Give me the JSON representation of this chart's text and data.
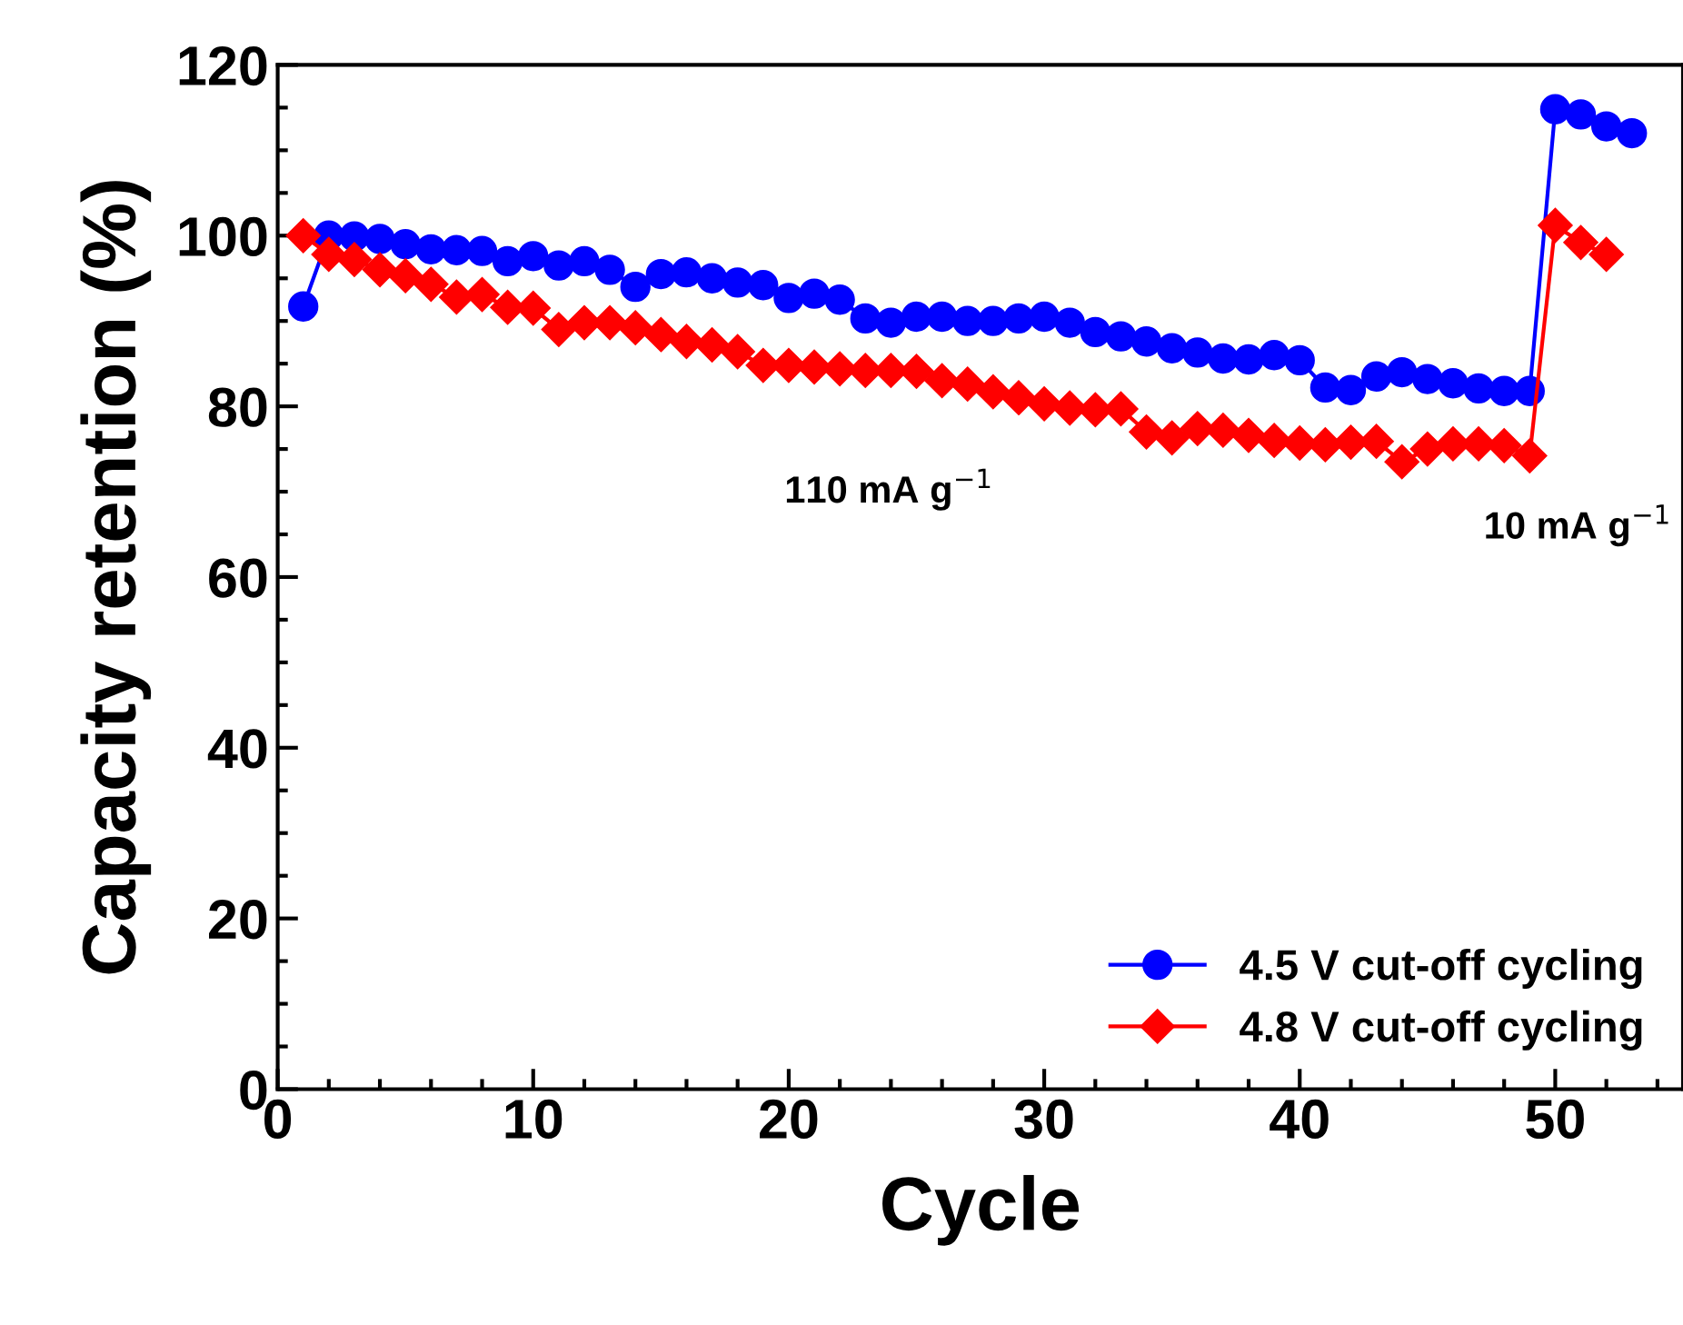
{
  "chart_data": {
    "type": "line",
    "xlabel": "Cycle",
    "ylabel": "Capacity retention (%)",
    "x": [
      1,
      2,
      3,
      4,
      5,
      6,
      7,
      8,
      9,
      10,
      11,
      12,
      13,
      14,
      15,
      16,
      17,
      18,
      19,
      20,
      21,
      22,
      23,
      24,
      25,
      26,
      27,
      28,
      29,
      30,
      31,
      32,
      33,
      34,
      35,
      36,
      37,
      38,
      39,
      40,
      41,
      42,
      43,
      44,
      45,
      46,
      47,
      48,
      49,
      50,
      51,
      52,
      53
    ],
    "series": [
      {
        "name": "4.5 V cut-off cycling",
        "color": "#0000ff",
        "marker": "circle",
        "values": [
          91.7,
          100,
          99.9,
          99.6,
          99.0,
          98.4,
          98.3,
          98.2,
          97,
          97.6,
          96.5,
          97,
          96,
          94,
          95.5,
          95.7,
          95,
          94.5,
          94.2,
          92.7,
          93.2,
          92.5,
          90.3,
          89.8,
          90.5,
          90.5,
          90,
          90,
          90.3,
          90.5,
          89.8,
          88.7,
          88.2,
          87.6,
          86.8,
          86.3,
          85.6,
          85.5,
          86,
          85.4,
          82.2,
          81.9,
          83.5,
          84,
          83.2,
          82.7,
          82.1,
          81.8,
          81.8,
          114.8,
          114.2,
          112.8,
          112
        ]
      },
      {
        "name": "4.8 V cut-off cycling",
        "color": "#ff0000",
        "marker": "diamond",
        "x": [
          1,
          2,
          3,
          4,
          5,
          6,
          7,
          8,
          9,
          10,
          11,
          12,
          13,
          14,
          15,
          16,
          17,
          18,
          19,
          20,
          21,
          22,
          23,
          24,
          25,
          26,
          27,
          28,
          29,
          30,
          31,
          32,
          33,
          34,
          35,
          36,
          37,
          38,
          39,
          40,
          41,
          42,
          43,
          44,
          45,
          46,
          47,
          48,
          49,
          50,
          51,
          52
        ],
        "values": [
          100,
          97.8,
          97.2,
          96,
          95.3,
          94.3,
          92.8,
          93.1,
          91.6,
          91.5,
          89,
          89.8,
          89.8,
          89.2,
          88.4,
          87.6,
          87.2,
          86.4,
          84.8,
          84.8,
          84.6,
          84.4,
          84.2,
          84.2,
          84.1,
          83,
          82.6,
          81.7,
          81,
          80.3,
          79.8,
          79.6,
          79.7,
          77,
          76.3,
          77.4,
          77.2,
          76.6,
          76,
          75.7,
          75.5,
          75.8,
          75.9,
          73.5,
          75,
          75.6,
          75.6,
          75.4,
          74.2,
          101.2,
          99.2,
          97.8
        ]
      }
    ],
    "annotations": [
      "110 mA g$^{−1}$",
      "10 mA g$^{−1}$"
    ],
    "xlim": [
      0,
      55
    ],
    "xticks": [
      0,
      10,
      20,
      30,
      40,
      50
    ],
    "ylim": [
      0,
      120
    ],
    "yticks": [
      0,
      20,
      40,
      60,
      80,
      100,
      120
    ],
    "legend": "bottom right",
    "grid": false,
    "line_style": "solid"
  }
}
